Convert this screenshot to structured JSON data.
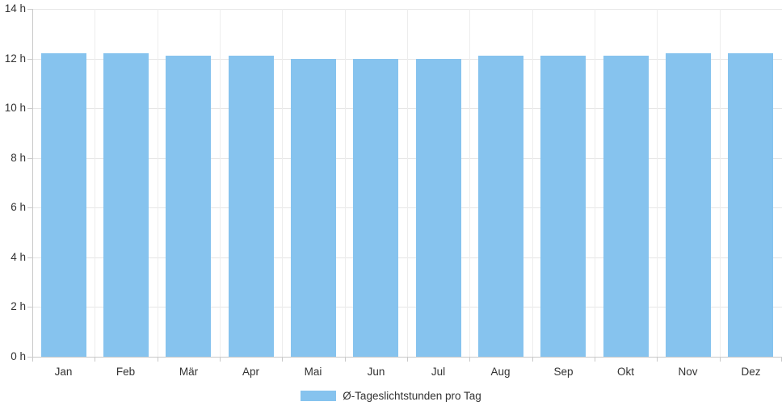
{
  "chart_data": {
    "type": "bar",
    "title": "",
    "xlabel": "",
    "ylabel": "",
    "categories": [
      "Jan",
      "Feb",
      "Mär",
      "Apr",
      "Mai",
      "Jun",
      "Jul",
      "Aug",
      "Sep",
      "Okt",
      "Nov",
      "Dez"
    ],
    "series": [
      {
        "name": "Ø-Tageslichtstunden pro Tag",
        "values": [
          12.2,
          12.2,
          12.1,
          12.1,
          12.0,
          12.0,
          12.0,
          12.1,
          12.1,
          12.1,
          12.2,
          12.2
        ],
        "color": "#86c3ee"
      }
    ],
    "ylim": [
      0,
      14
    ],
    "ytick_step": 2,
    "ytick_labels": [
      "0 h",
      "2 h",
      "4 h",
      "6 h",
      "8 h",
      "10 h",
      "12 h",
      "14 h"
    ],
    "grid": true,
    "legend_position": "bottom-center"
  },
  "legend": {
    "label": "Ø-Tageslichtstunden pro Tag"
  },
  "colors": {
    "bar": "#86c3ee",
    "grid_horizontal": "#e6e6e6",
    "grid_vertical": "#ededed",
    "axis": "#c9c9c9",
    "text": "#333333",
    "background": "#ffffff"
  }
}
